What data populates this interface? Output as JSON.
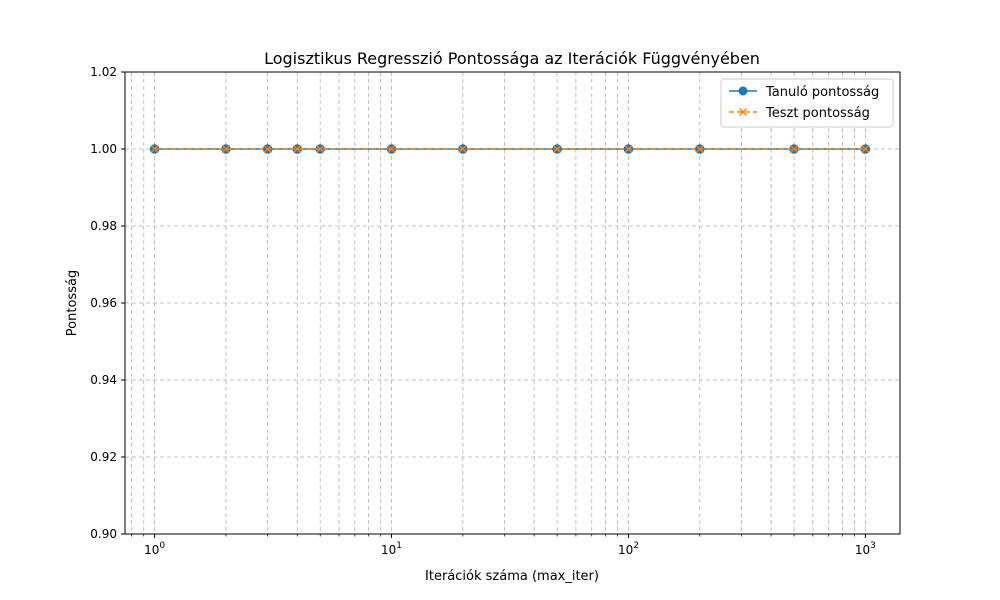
{
  "chart_data": {
    "type": "line",
    "title": "Logisztikus Regresszió Pontossága az Iterációk Függvényében",
    "xlabel": "Iterációk száma (max_iter)",
    "ylabel": "Pontosság",
    "x_scale": "log",
    "xlim": [
      0.75,
      1400
    ],
    "ylim": [
      0.9,
      1.02
    ],
    "x_ticks": [
      1,
      10,
      100,
      1000
    ],
    "x_tick_labels": [
      {
        "base": "10",
        "exp": "0"
      },
      {
        "base": "10",
        "exp": "1"
      },
      {
        "base": "10",
        "exp": "2"
      },
      {
        "base": "10",
        "exp": "3"
      }
    ],
    "y_ticks": [
      0.9,
      0.92,
      0.94,
      0.96,
      0.98,
      1.0,
      1.02
    ],
    "y_tick_labels": [
      "0.90",
      "0.92",
      "0.94",
      "0.96",
      "0.98",
      "1.00",
      "1.02"
    ],
    "grid": true,
    "grid_minor_x": true,
    "legend_position": "top-right",
    "x": [
      1,
      2,
      3,
      4,
      5,
      10,
      20,
      50,
      100,
      200,
      500,
      1000
    ],
    "series": [
      {
        "name": "Tanuló pontosság",
        "values": [
          1.0,
          1.0,
          1.0,
          1.0,
          1.0,
          1.0,
          1.0,
          1.0,
          1.0,
          1.0,
          1.0,
          1.0
        ],
        "color": "#1f77b4",
        "marker": "circle",
        "line_style": "solid"
      },
      {
        "name": "Teszt pontosság",
        "values": [
          1.0,
          1.0,
          1.0,
          1.0,
          1.0,
          1.0,
          1.0,
          1.0,
          1.0,
          1.0,
          1.0,
          1.0
        ],
        "color": "#ff7f0e",
        "marker": "x",
        "line_style": "dashed"
      }
    ]
  }
}
